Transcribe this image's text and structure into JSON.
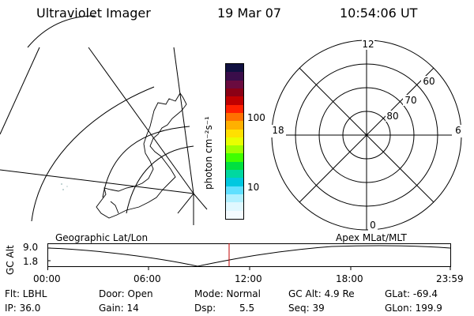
{
  "header": {
    "title": "Ultraviolet Imager",
    "date": "19 Mar 07",
    "time": "10:54:06 UT"
  },
  "colorbar": {
    "unit_label": "photon cm⁻²s⁻¹",
    "tick_100": "100",
    "tick_10": "10",
    "colors": [
      "#101040",
      "#3a0d4a",
      "#6a0b3f",
      "#8b0015",
      "#c00000",
      "#ff2000",
      "#ff7000",
      "#ffb000",
      "#ffe000",
      "#e8ff00",
      "#a0ff00",
      "#40ff00",
      "#00e040",
      "#00d8a0",
      "#00c8e0",
      "#60e0ff",
      "#b0f0ff",
      "#e0f8ff",
      "#f4fbff"
    ]
  },
  "polar_plot": {
    "label_12": "12",
    "label_18": "18",
    "label_6": "6",
    "label_0": "0",
    "label_60": "60",
    "label_70": "70",
    "label_80": "80"
  },
  "altitude_plot": {
    "axis_label": "GC Alt",
    "tick_top": "9.0",
    "tick_bottom": "1.8",
    "left_title": "Geographic Lat/Lon",
    "right_title": "Apex MLat/MLT",
    "x_ticks": [
      "00:00",
      "06:00",
      "12:00",
      "18:00",
      "23:59"
    ]
  },
  "status": {
    "filter": "Flt: LBHL",
    "door": "Door: Open",
    "mode": "Mode: Normal",
    "gc_alt": "GC Alt: 4.9 Re",
    "glat": "GLat: -69.4",
    "ip": "IP: 36.0",
    "gain": "Gain: 14",
    "dsp_label": "Dsp:",
    "dsp_value": "5.5",
    "seq": "Seq: 39",
    "glon": "GLon: 199.9"
  }
}
